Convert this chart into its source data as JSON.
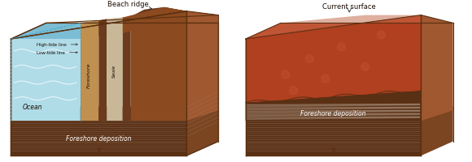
{
  "bg_color": "#ffffff",
  "left_label": "Beach ridge",
  "right_label": "Current surface",
  "left_sub_labels": [
    "High-tide line",
    "Low-tide line",
    "Foreshore",
    "Swale",
    "Ocean"
  ],
  "bottom_label": "Foreshore deposition",
  "question_mark": "?",
  "colors": {
    "ocean_blue": "#b0dce8",
    "ocean_blue_dark": "#7bbdd4",
    "sand_tan": "#c8a060",
    "sand_light": "#d4b070",
    "dark_brown": "#6b3a1f",
    "mid_brown": "#8b4a1f",
    "light_brown": "#a05830",
    "mars_red": "#b04020",
    "mars_light": "#c05535",
    "base_dark": "#5a3015",
    "base_mid": "#7a4520",
    "stripe_gray": "#9a8070",
    "stripe_light": "#c0aa90",
    "box_outline": "#5a3010",
    "text_dark": "#1a0a00",
    "foreshore_tan": "#c09050"
  },
  "figsize": [
    5.8,
    2.01
  ],
  "dpi": 100
}
